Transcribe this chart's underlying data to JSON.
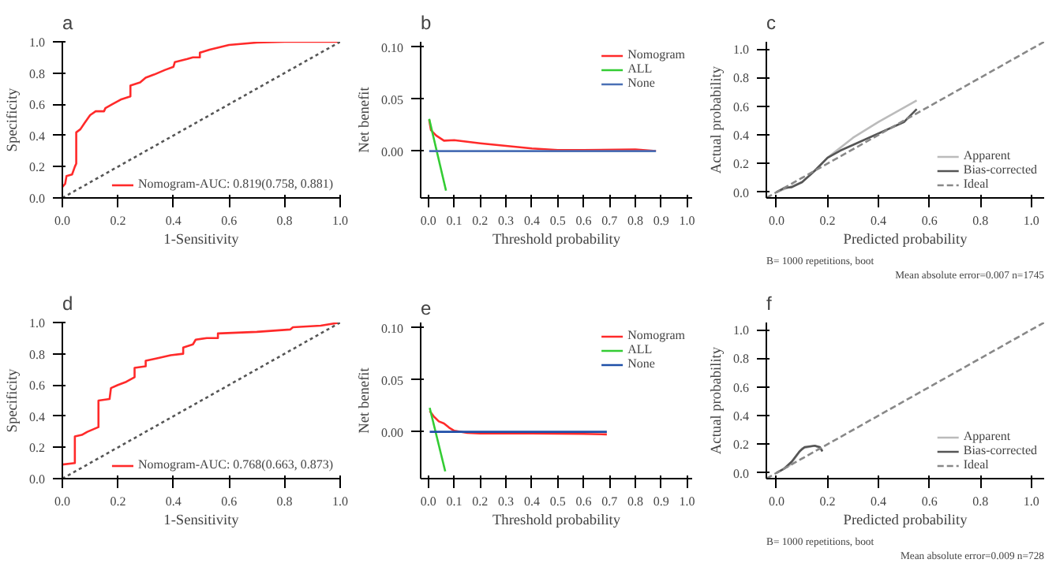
{
  "chart_data": [
    {
      "type": "line",
      "title": "a",
      "xlabel": "1-Sensitivity",
      "ylabel": "Specificity",
      "xlim": [
        0,
        1.0
      ],
      "ylim": [
        0,
        1.0
      ],
      "xticks": [
        {
          "value": 0,
          "label": "0.0"
        },
        {
          "value": 0.2,
          "label": "0.2"
        },
        {
          "value": 0.4,
          "label": "0.4"
        },
        {
          "value": 0.6,
          "label": "0.6"
        },
        {
          "value": 0.8,
          "label": "0.8"
        },
        {
          "value": 1,
          "label": "1.0"
        }
      ],
      "yticks": [
        {
          "value": 0,
          "label": "0.0"
        },
        {
          "value": 0.2,
          "label": "0.2"
        },
        {
          "value": 0.4,
          "label": "0.4"
        },
        {
          "value": 0.6,
          "label": "0.6"
        },
        {
          "value": 0.8,
          "label": "0.8"
        },
        {
          "value": 1,
          "label": "1.0"
        }
      ],
      "legend": "bottom right",
      "grid": false,
      "series": [
        {
          "name": "Nomogram-AUC: 0.819(0.758, 0.881)",
          "color": "#ff2a2a",
          "line_style": "solid",
          "x": [
            0,
            0.01,
            0.015,
            0.035,
            0.045,
            0.05,
            0.05,
            0.065,
            0.08,
            0.1,
            0.12,
            0.15,
            0.155,
            0.18,
            0.21,
            0.245,
            0.245,
            0.28,
            0.3,
            0.33,
            0.37,
            0.4,
            0.405,
            0.45,
            0.47,
            0.495,
            0.495,
            0.53,
            0.6,
            0.7,
            0.8,
            1.0
          ],
          "values": [
            0.07,
            0.09,
            0.14,
            0.15,
            0.2,
            0.22,
            0.42,
            0.44,
            0.48,
            0.53,
            0.555,
            0.555,
            0.575,
            0.6,
            0.63,
            0.65,
            0.72,
            0.74,
            0.77,
            0.79,
            0.82,
            0.84,
            0.87,
            0.89,
            0.9,
            0.9,
            0.93,
            0.95,
            0.98,
            0.995,
            1.0,
            1.0
          ]
        },
        {
          "color": "#555555",
          "line_style": "dotted",
          "x": [
            0,
            1.0
          ],
          "values": [
            0,
            1.0
          ]
        }
      ]
    },
    {
      "type": "line",
      "title": "b",
      "xlabel": "Threshold probability",
      "ylabel": "Net benefit",
      "xlim": [
        -0.03,
        1.02
      ],
      "ylim": [
        -0.045,
        0.105
      ],
      "xticks": [
        {
          "value": 0,
          "label": "0.0"
        },
        {
          "value": 0.1,
          "label": "0.1"
        },
        {
          "value": 0.2,
          "label": "0.2"
        },
        {
          "value": 0.3,
          "label": "0.3"
        },
        {
          "value": 0.4,
          "label": "0.4"
        },
        {
          "value": 0.5,
          "label": "0.5"
        },
        {
          "value": 0.6,
          "label": "0.6"
        },
        {
          "value": 0.7,
          "label": "0.7"
        },
        {
          "value": 0.8,
          "label": "0.8"
        },
        {
          "value": 0.9,
          "label": "0.9"
        },
        {
          "value": 1,
          "label": "1.0"
        }
      ],
      "yticks": [
        {
          "value": 0,
          "label": "0.00"
        },
        {
          "value": 0.05,
          "label": "0.05"
        },
        {
          "value": 0.1,
          "label": "0.10"
        }
      ],
      "legend": "top right",
      "grid": false,
      "series": [
        {
          "name": "Nomogram",
          "color": "#ff2a2a",
          "line_style": "solid",
          "x": [
            0.003,
            0.01,
            0.03,
            0.06,
            0.1,
            0.15,
            0.2,
            0.3,
            0.4,
            0.5,
            0.6,
            0.8,
            0.88
          ],
          "values": [
            0.03,
            0.02,
            0.015,
            0.01,
            0.0105,
            0.009,
            0.0075,
            0.005,
            0.0025,
            0.001,
            0.001,
            0.0015,
            0.0
          ]
        },
        {
          "name": "ALL",
          "color": "#33cc33",
          "line_style": "solid",
          "x": [
            0.003,
            0.068
          ],
          "values": [
            0.031,
            -0.038
          ]
        },
        {
          "name": "None",
          "color": "#4a6fb5",
          "line_style": "solid",
          "x": [
            0.003,
            0.88
          ],
          "values": [
            0,
            0
          ]
        }
      ]
    },
    {
      "type": "line",
      "title": "c",
      "xlabel": "Predicted probability",
      "ylabel": "Actual probability",
      "xlim": [
        -0.04,
        1.05
      ],
      "ylim": [
        -0.04,
        1.05
      ],
      "xticks": [
        {
          "value": 0,
          "label": "0.0"
        },
        {
          "value": 0.2,
          "label": "0.2"
        },
        {
          "value": 0.4,
          "label": "0.4"
        },
        {
          "value": 0.6,
          "label": "0.6"
        },
        {
          "value": 0.8,
          "label": "0.8"
        },
        {
          "value": 1,
          "label": "1.0"
        }
      ],
      "yticks": [
        {
          "value": 0,
          "label": "0.0"
        },
        {
          "value": 0.2,
          "label": "0.2"
        },
        {
          "value": 0.4,
          "label": "0.4"
        },
        {
          "value": 0.6,
          "label": "0.6"
        },
        {
          "value": 0.8,
          "label": "0.8"
        },
        {
          "value": 1,
          "label": "1.0"
        }
      ],
      "legend": "bottom right",
      "grid": false,
      "annotations": [
        "B= 1000 repetitions, boot",
        "Mean absolute error=0.007 n=1745"
      ],
      "series": [
        {
          "name": "Apparent",
          "color": "#bbbbbb",
          "line_style": "solid",
          "x": [
            0,
            0.05,
            0.1,
            0.15,
            0.2,
            0.3,
            0.4,
            0.55
          ],
          "values": [
            0,
            0.035,
            0.07,
            0.15,
            0.24,
            0.38,
            0.49,
            0.64
          ]
        },
        {
          "name": "Bias-corrected",
          "color": "#555555",
          "line_style": "solid",
          "x": [
            0,
            0.03,
            0.06,
            0.1,
            0.15,
            0.2,
            0.25,
            0.3,
            0.4,
            0.5,
            0.55
          ],
          "values": [
            0,
            0.03,
            0.035,
            0.07,
            0.15,
            0.24,
            0.29,
            0.33,
            0.41,
            0.49,
            0.58
          ]
        },
        {
          "name": "Ideal",
          "color": "#888888",
          "line_style": "dashed",
          "x": [
            -0.04,
            1.05
          ],
          "values": [
            -0.04,
            1.05
          ]
        }
      ]
    },
    {
      "type": "line",
      "title": "d",
      "xlabel": "1-Sensitivity",
      "ylabel": "Specificity",
      "xlim": [
        0,
        1.0
      ],
      "ylim": [
        0,
        1.0
      ],
      "xticks": [
        {
          "value": 0,
          "label": "0.0"
        },
        {
          "value": 0.2,
          "label": "0.2"
        },
        {
          "value": 0.4,
          "label": "0.4"
        },
        {
          "value": 0.6,
          "label": "0.6"
        },
        {
          "value": 0.8,
          "label": "0.8"
        },
        {
          "value": 1,
          "label": "1.0"
        }
      ],
      "yticks": [
        {
          "value": 0,
          "label": "0.0"
        },
        {
          "value": 0.2,
          "label": "0.2"
        },
        {
          "value": 0.4,
          "label": "0.4"
        },
        {
          "value": 0.6,
          "label": "0.6"
        },
        {
          "value": 0.8,
          "label": "0.8"
        },
        {
          "value": 1,
          "label": "1.0"
        }
      ],
      "legend": "bottom right",
      "grid": false,
      "series": [
        {
          "name": "Nomogram-AUC: 0.768(0.663, 0.873)",
          "color": "#ff2a2a",
          "line_style": "solid",
          "x": [
            0,
            0.045,
            0.045,
            0.07,
            0.09,
            0.13,
            0.13,
            0.17,
            0.175,
            0.2,
            0.23,
            0.26,
            0.26,
            0.3,
            0.3,
            0.34,
            0.39,
            0.435,
            0.435,
            0.47,
            0.48,
            0.52,
            0.56,
            0.56,
            0.7,
            0.82,
            0.83,
            0.93,
            1.0
          ],
          "values": [
            0.09,
            0.1,
            0.27,
            0.28,
            0.3,
            0.33,
            0.5,
            0.51,
            0.58,
            0.6,
            0.62,
            0.65,
            0.71,
            0.72,
            0.755,
            0.77,
            0.79,
            0.8,
            0.84,
            0.86,
            0.89,
            0.9,
            0.9,
            0.93,
            0.94,
            0.955,
            0.97,
            0.98,
            1.0
          ]
        },
        {
          "color": "#555555",
          "line_style": "dotted",
          "x": [
            0,
            1.0
          ],
          "values": [
            0,
            1.0
          ]
        }
      ]
    },
    {
      "type": "line",
      "title": "e",
      "xlabel": "Threshold probability",
      "ylabel": "Net benefit",
      "xlim": [
        -0.03,
        1.02
      ],
      "ylim": [
        -0.045,
        0.105
      ],
      "xticks": [
        {
          "value": 0,
          "label": "0.0"
        },
        {
          "value": 0.1,
          "label": "0.1"
        },
        {
          "value": 0.2,
          "label": "0.2"
        },
        {
          "value": 0.3,
          "label": "0.3"
        },
        {
          "value": 0.4,
          "label": "0.4"
        },
        {
          "value": 0.5,
          "label": "0.5"
        },
        {
          "value": 0.6,
          "label": "0.6"
        },
        {
          "value": 0.7,
          "label": "0.7"
        },
        {
          "value": 0.8,
          "label": "0.8"
        },
        {
          "value": 0.9,
          "label": "0.9"
        },
        {
          "value": 1,
          "label": "1.0"
        }
      ],
      "yticks": [
        {
          "value": 0,
          "label": "0.00"
        },
        {
          "value": 0.05,
          "label": "0.05"
        },
        {
          "value": 0.1,
          "label": "0.10"
        }
      ],
      "legend": "top right",
      "grid": false,
      "series": [
        {
          "name": "Nomogram",
          "color": "#ff2a2a",
          "line_style": "solid",
          "x": [
            0.005,
            0.02,
            0.04,
            0.06,
            0.08,
            0.1,
            0.15,
            0.2,
            0.4,
            0.6,
            0.69
          ],
          "values": [
            0.02,
            0.015,
            0.01,
            0.008,
            0.004,
            0.001,
            -0.001,
            -0.0015,
            -0.0015,
            -0.002,
            -0.0025
          ]
        },
        {
          "name": "ALL",
          "color": "#33cc33",
          "line_style": "solid",
          "x": [
            0.005,
            0.065
          ],
          "values": [
            0.023,
            -0.038
          ]
        },
        {
          "name": "None",
          "color": "#1f4fa8",
          "line_style": "solid",
          "x": [
            0.005,
            0.69
          ],
          "values": [
            0,
            0
          ]
        }
      ]
    },
    {
      "type": "line",
      "title": "f",
      "xlabel": "Predicted probability",
      "ylabel": "Actual probability",
      "xlim": [
        -0.04,
        1.05
      ],
      "ylim": [
        -0.04,
        1.05
      ],
      "xticks": [
        {
          "value": 0,
          "label": "0.0"
        },
        {
          "value": 0.2,
          "label": "0.2"
        },
        {
          "value": 0.4,
          "label": "0.4"
        },
        {
          "value": 0.6,
          "label": "0.6"
        },
        {
          "value": 0.8,
          "label": "0.8"
        },
        {
          "value": 1,
          "label": "1.0"
        }
      ],
      "yticks": [
        {
          "value": 0,
          "label": "0.0"
        },
        {
          "value": 0.2,
          "label": "0.2"
        },
        {
          "value": 0.4,
          "label": "0.4"
        },
        {
          "value": 0.6,
          "label": "0.6"
        },
        {
          "value": 0.8,
          "label": "0.8"
        },
        {
          "value": 1,
          "label": "1.0"
        }
      ],
      "legend": "bottom right",
      "grid": false,
      "annotations": [
        "B= 1000 repetitions, boot",
        "Mean absolute error=0.009 n=728"
      ],
      "series": [
        {
          "name": "Apparent",
          "color": "#bbbbbb",
          "line_style": "solid",
          "x": [
            0,
            0.05,
            0.1,
            0.15,
            0.18
          ],
          "values": [
            0,
            0.05,
            0.17,
            0.19,
            0.16
          ]
        },
        {
          "name": "Bias-corrected",
          "color": "#555555",
          "line_style": "solid",
          "x": [
            0,
            0.03,
            0.06,
            0.09,
            0.11,
            0.15,
            0.17,
            0.18
          ],
          "values": [
            0,
            0.03,
            0.08,
            0.15,
            0.18,
            0.19,
            0.18,
            0.15
          ]
        },
        {
          "name": "Ideal",
          "color": "#888888",
          "line_style": "dashed",
          "x": [
            -0.04,
            1.05
          ],
          "values": [
            -0.04,
            1.05
          ]
        }
      ]
    }
  ]
}
